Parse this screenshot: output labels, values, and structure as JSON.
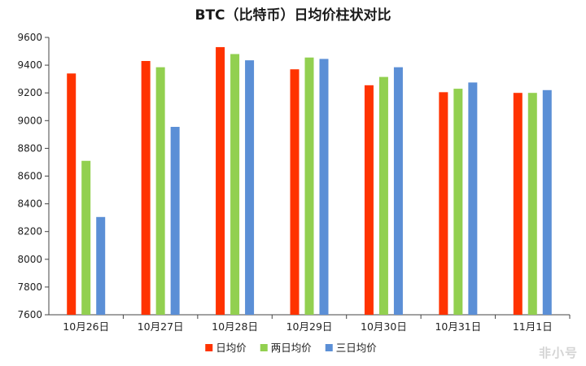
{
  "chart_data": {
    "type": "bar",
    "title": "BTC（比特币）日均价柱状对比",
    "categories": [
      "10月26日",
      "10月27日",
      "10月28日",
      "10月29日",
      "10月30日",
      "10月31日",
      "11月1日"
    ],
    "series": [
      {
        "name": "日均价",
        "color": "#ff3300",
        "values": [
          9340,
          9430,
          9530,
          9370,
          9255,
          9205,
          9200
        ]
      },
      {
        "name": "两日均价",
        "color": "#92d050",
        "values": [
          8710,
          9385,
          9480,
          9455,
          9315,
          9230,
          9200
        ]
      },
      {
        "name": "三日均价",
        "color": "#5b8fd6",
        "values": [
          8305,
          8955,
          9435,
          9445,
          9385,
          9275,
          9220
        ]
      }
    ],
    "ylim": [
      7600,
      9600
    ],
    "yticks": [
      7600,
      7800,
      8000,
      8200,
      8400,
      8600,
      8800,
      9000,
      9200,
      9400,
      9600
    ],
    "xlabel": "",
    "ylabel": "",
    "grid": false,
    "legend_position": "bottom"
  },
  "watermark": "非小号"
}
